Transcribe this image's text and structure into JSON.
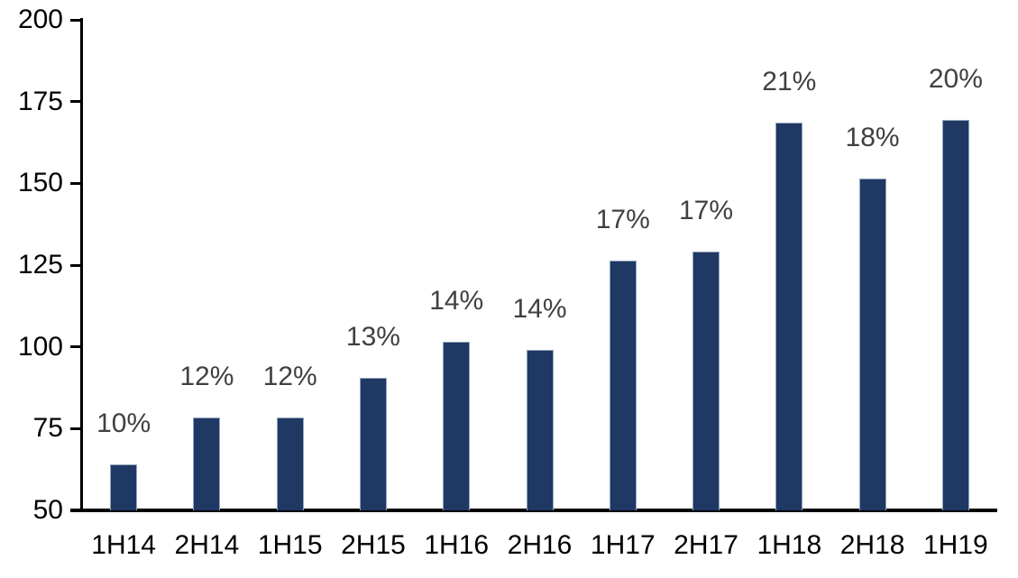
{
  "chart_data": {
    "type": "bar",
    "title": "",
    "xlabel": "",
    "ylabel": "",
    "categories": [
      "1H14",
      "2H14",
      "1H15",
      "2H15",
      "1H16",
      "2H16",
      "1H17",
      "2H17",
      "1H18",
      "2H18",
      "1H19"
    ],
    "values": [
      64,
      78.5,
      78.5,
      90.5,
      101.5,
      99,
      126.5,
      129,
      168.5,
      151.5,
      169.5
    ],
    "bar_labels": [
      "10%",
      "12%",
      "12%",
      "13%",
      "14%",
      "14%",
      "17%",
      "17%",
      "21%",
      "18%",
      "20%"
    ],
    "y_ticks": [
      200,
      175,
      150,
      125,
      100,
      75,
      50
    ],
    "ylim": [
      50,
      200
    ],
    "grid": "off",
    "legend": "none",
    "colors": {
      "bar_fill": "#1F3864",
      "bar_edge": "#93A5BC",
      "bar_label": "#404040",
      "axis": "#000000",
      "tick_text": "#000000",
      "background": "#FFFFFF"
    }
  }
}
